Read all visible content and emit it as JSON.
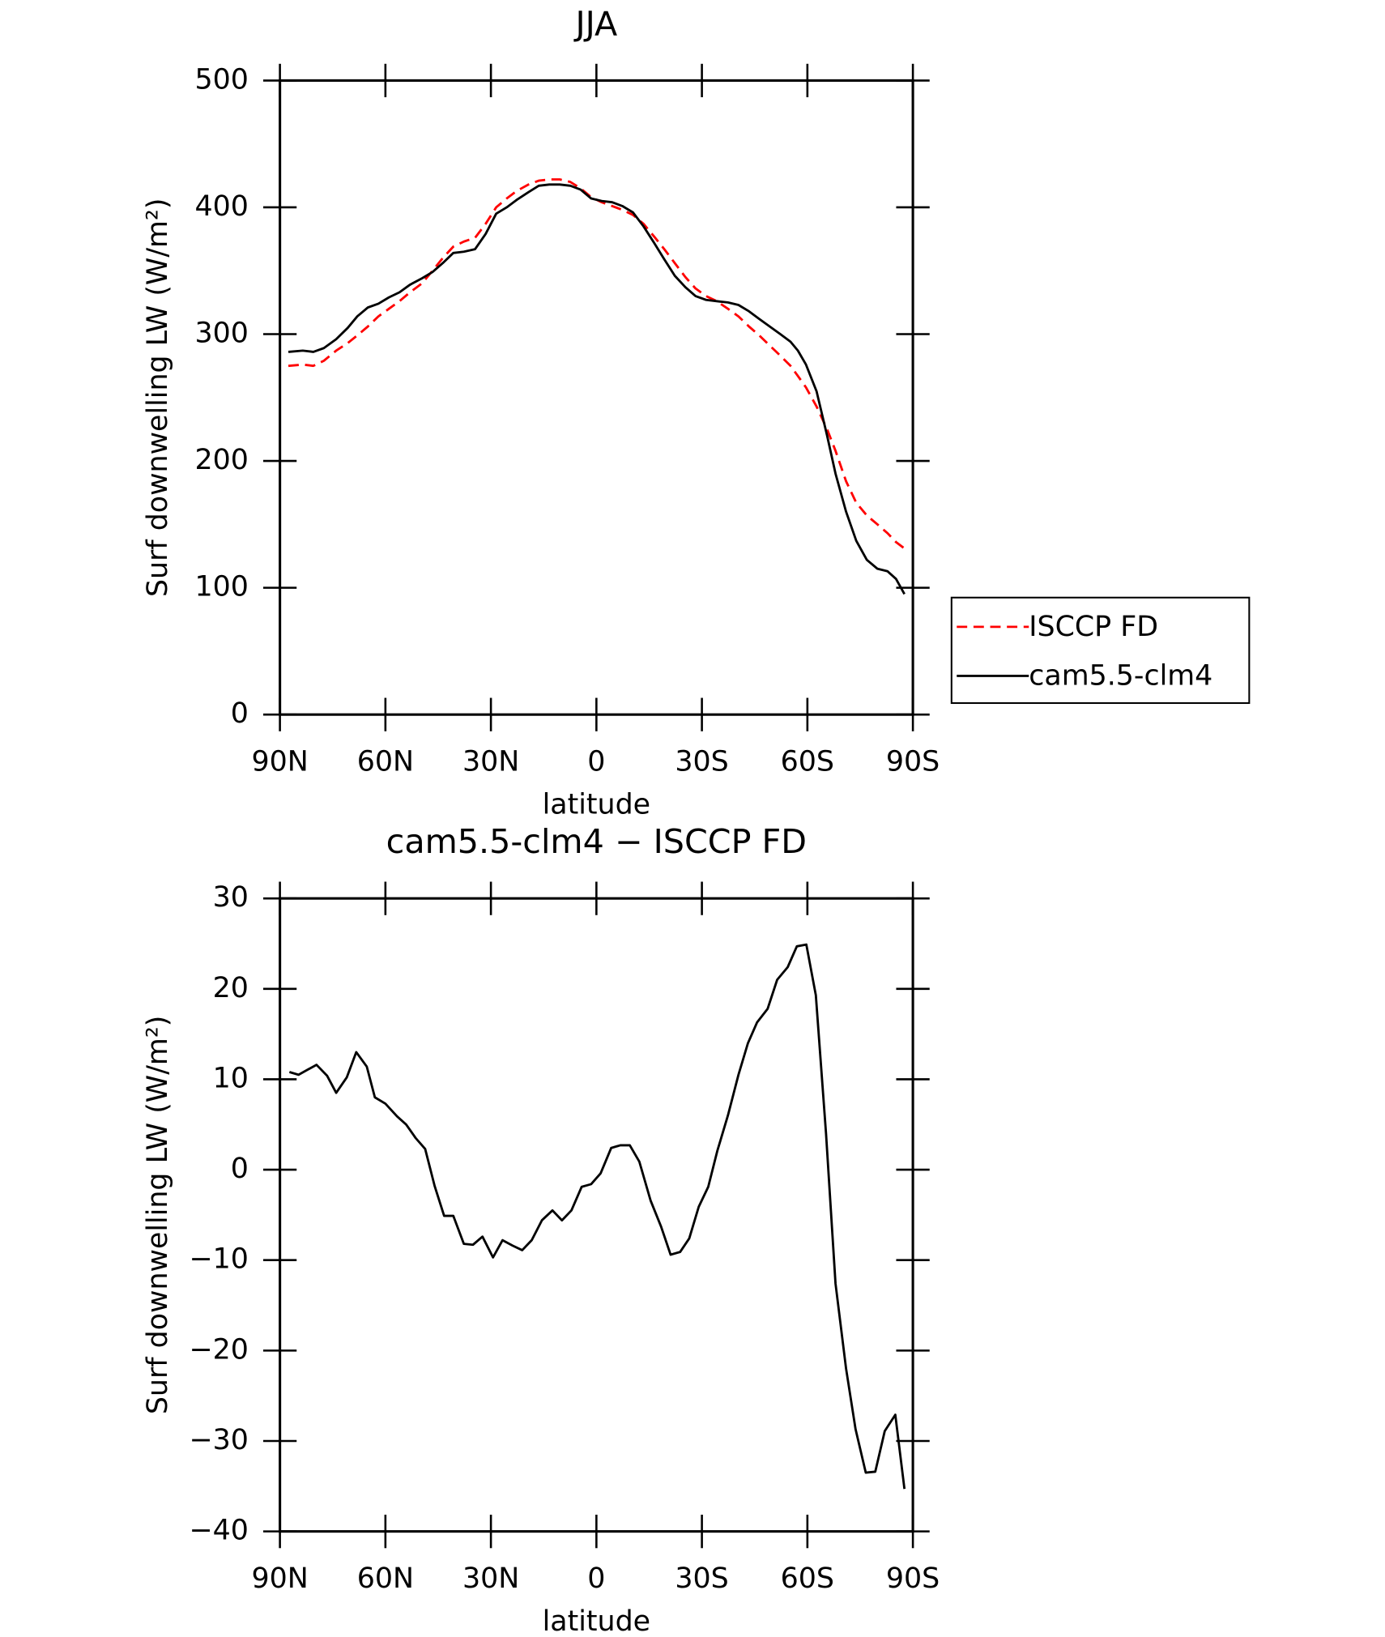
{
  "chart_data": [
    {
      "type": "line",
      "title": "JJA",
      "x_label": "latitude",
      "y_label": "Surf downwelling LW (W/m²)",
      "x": [
        87.6,
        83.5,
        80.5,
        77.5,
        74,
        70.7,
        68,
        65,
        62,
        59,
        56,
        53,
        49.6,
        46.6,
        43.7,
        40.7,
        37.7,
        34.5,
        31.5,
        28.5,
        25.5,
        22.6,
        19.3,
        16.4,
        13.4,
        10.4,
        7.4,
        4.5,
        1.5,
        -1.5,
        -4.5,
        -7.4,
        -10.4,
        -13.4,
        -16.4,
        -19.3,
        -22.3,
        -25.3,
        -28.2,
        -31.2,
        -34.2,
        -37.4,
        -40.4,
        -43.4,
        -46.3,
        -49.3,
        -52.3,
        -55.2,
        -57.3,
        -59.6,
        -62.6,
        -65.6,
        -68,
        -71,
        -73.9,
        -76.9,
        -79.9,
        -82.8,
        -85.2,
        -87.6
      ],
      "series": [
        {
          "name": "ISCCP FD",
          "color": "#ff0000",
          "dashed": true,
          "values": [
            275,
            276,
            275,
            279,
            287,
            293,
            299,
            306,
            314,
            320,
            326,
            333,
            340,
            350,
            360,
            369,
            373,
            376,
            387,
            400,
            407,
            413,
            418,
            421,
            422,
            422,
            420,
            415,
            408,
            404,
            401,
            398,
            394,
            387,
            377,
            367,
            356,
            345,
            336,
            330,
            326,
            320,
            314,
            306,
            299,
            291,
            283,
            275,
            267,
            258,
            243,
            225,
            208,
            184,
            167,
            157,
            150,
            143,
            136,
            131
          ]
        },
        {
          "name": "cam5.5-clm4",
          "color": "#000000",
          "dashed": false,
          "values": [
            286,
            287,
            286,
            289,
            296,
            305,
            314,
            321,
            324,
            329,
            333,
            339,
            344,
            349,
            356,
            364,
            365,
            367,
            379,
            395,
            400,
            406,
            412,
            417,
            418,
            418,
            417,
            414,
            407,
            405,
            404,
            401,
            396,
            385,
            372,
            359,
            346,
            337,
            330,
            327,
            326,
            325,
            323,
            318,
            312,
            306,
            300,
            294,
            287,
            276,
            255,
            220,
            190,
            160,
            137,
            122,
            115,
            113,
            107,
            95
          ]
        }
      ],
      "xlim": [
        90,
        -90
      ],
      "xticks": [
        {
          "value": 90,
          "label": "90N"
        },
        {
          "value": 60,
          "label": "60N"
        },
        {
          "value": 30,
          "label": "30N"
        },
        0,
        {
          "value": -30,
          "label": "30S"
        },
        {
          "value": -60,
          "label": "60S"
        },
        {
          "value": -90,
          "label": "90S"
        }
      ],
      "ylim": [
        0,
        500
      ],
      "yticks": [
        0,
        100,
        200,
        300,
        400,
        500
      ],
      "legend": "right"
    },
    {
      "type": "line",
      "title": "cam5.5-clm4 − ISCCP FD",
      "x_label": "latitude",
      "y_label": "Surf downwelling LW (W/m²)",
      "x": [
        87.3,
        84.7,
        79.6,
        76.6,
        74.0,
        71.0,
        68.3,
        65.3,
        63.0,
        60.0,
        56.7,
        54.1,
        51.4,
        48.7,
        46.0,
        43.3,
        40.7,
        37.7,
        35.1,
        32.4,
        29.4,
        26.7,
        23.8,
        21.1,
        18.4,
        15.5,
        12.5,
        9.8,
        7.1,
        4.2,
        1.5,
        -1.2,
        -4.2,
        -6.8,
        -9.5,
        -12.2,
        -15.4,
        -18.4,
        -21.1,
        -23.8,
        -26.4,
        -29.1,
        -31.8,
        -34.4,
        -37.4,
        -40.4,
        -43.1,
        -45.7,
        -48.7,
        -51.4,
        -54.4,
        -57.0,
        -59.7,
        -62.4,
        -65.3,
        -68.0,
        -71.0,
        -73.7,
        -76.6,
        -79.3,
        -82.0,
        -85.0,
        -87.6
      ],
      "series": [
        {
          "color": "#000000",
          "dashed": false,
          "values": [
            10.8,
            10.5,
            11.6,
            10.4,
            8.5,
            10.2,
            13.0,
            11.4,
            8.0,
            7.3,
            5.9,
            5.0,
            3.5,
            2.3,
            -1.8,
            -5.1,
            -5.1,
            -8.2,
            -8.3,
            -7.4,
            -9.7,
            -7.8,
            -8.4,
            -8.9,
            -7.8,
            -5.6,
            -4.5,
            -5.6,
            -4.5,
            -1.9,
            -1.6,
            -0.4,
            2.4,
            2.7,
            2.7,
            0.9,
            -3.4,
            -6.3,
            -9.4,
            -9.1,
            -7.6,
            -4.1,
            -1.9,
            2.1,
            6.0,
            10.5,
            14.0,
            16.3,
            17.8,
            21.0,
            22.4,
            24.7,
            24.9,
            19.3,
            4.0,
            -12.6,
            -22.0,
            -28.7,
            -33.5,
            -33.4,
            -28.9,
            -27.1,
            -35.3
          ]
        }
      ],
      "xlim": [
        90,
        -90
      ],
      "xticks": [
        {
          "value": 90,
          "label": "90N"
        },
        {
          "value": 60,
          "label": "60N"
        },
        {
          "value": 30,
          "label": "30N"
        },
        0,
        {
          "value": -30,
          "label": "30S"
        },
        {
          "value": -60,
          "label": "60S"
        },
        {
          "value": -90,
          "label": "90S"
        }
      ],
      "ylim": [
        -40,
        30
      ],
      "yticks": [
        {
          "value": -40,
          "label": "−40"
        },
        {
          "value": -30,
          "label": "−30"
        },
        {
          "value": -20,
          "label": "−20"
        },
        {
          "value": -10,
          "label": "−10"
        },
        0,
        10,
        20,
        30
      ]
    }
  ]
}
